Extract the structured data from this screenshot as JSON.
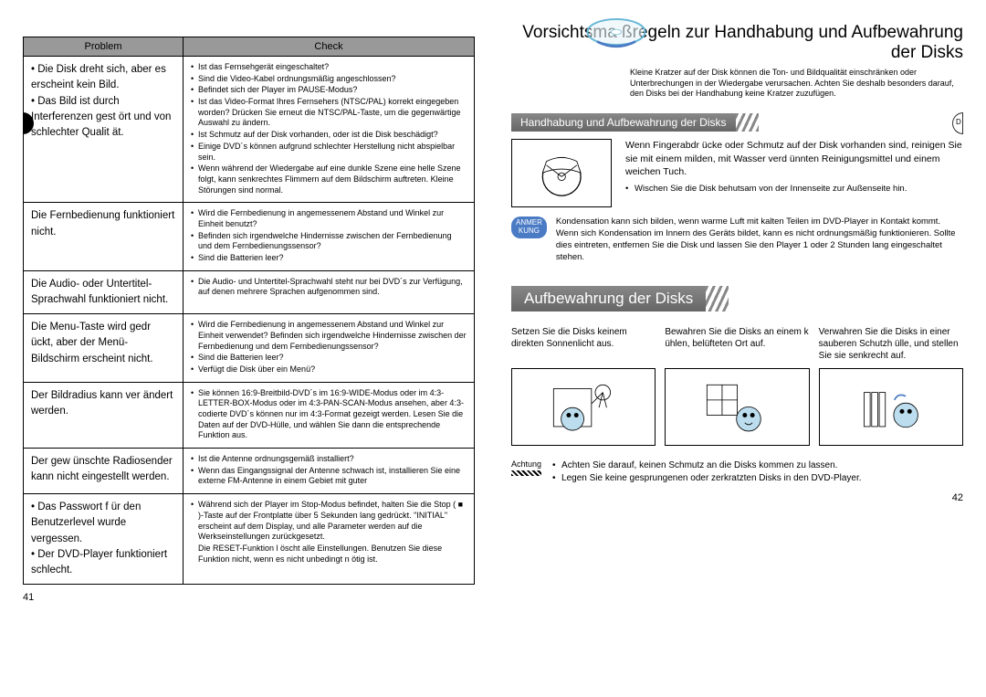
{
  "title": "Vorsichtsma ßregeln zur Handhabung und Aufbewahrung der Disks",
  "intro": "Kleine Kratzer auf der Disk können die Ton- und Bildqualität einschränken oder Unterbrechungen in der Wiedergabe verursachen. Achten Sie deshalb besonders darauf, den Disks bei der Handhabung keine Kratzer zuzufügen.",
  "table": {
    "headers": [
      "Problem",
      "Check"
    ],
    "rows": [
      {
        "problem": "• Die Disk dreht sich, aber es erscheint kein Bild.\n• Das Bild ist durch Interferenzen gest ört und von schlechter Qualit ät.",
        "check": "• Ist das Fernsehgerät eingeschaltet?\n• Sind die Video-Kabel ordnungsmäßig angeschlossen?\n• Befindet sich der Player im PAUSE-Modus?\n• Ist das Video-Format Ihres Fernsehers (NTSC/PAL) korrekt eingegeben worden? Drücken Sie erneut die NTSC/PAL-Taste, um die gegenwärtige Auswahl zu ändern.\n• Ist Schmutz auf der Disk vorhanden, oder ist die Disk beschädigt?\n• Einige DVD´s können aufgrund schlechter Herstellung nicht abspielbar sein.\n• Wenn während der Wiedergabe auf eine dunkle Szene eine helle Szene folgt, kann senkrechtes Flimmern auf dem Bildschirm auftreten. Kleine Störungen sind normal."
      },
      {
        "problem": "Die Fernbedienung funktioniert nicht.",
        "check": "• Wird die Fernbedienung in angemessenem Abstand und Winkel zur Einheit benutzt?\n• Befinden sich irgendwelche Hindernisse zwischen der Fernbedienung und dem Fernbedienungssensor?\n• Sind die Batterien leer?"
      },
      {
        "problem": "Die Audio- oder Untertitel-Sprachwahl funktioniert nicht.",
        "check": "• Die Audio- und Untertitel-Sprachwahl steht nur bei DVD´s zur Verfügung, auf denen mehrere Sprachen aufgenommen sind."
      },
      {
        "problem": "Die Menu-Taste wird gedr ückt, aber der Menü-Bildschirm erscheint nicht.",
        "check": "• Wird die Fernbedienung in angemessenem Abstand und Winkel zur Einheit verwendet? Befinden sich irgendwelche Hindernisse zwischen der Fernbedienung und dem Fernbedienungssensor?\n• Sind die Batterien leer?\n• Verfügt die Disk über ein Menü?"
      },
      {
        "problem": "Der Bildradius kann ver ändert werden.",
        "check": "• Sie können 16:9-Breitbild-DVD´s im 16:9-WIDE-Modus oder im 4:3-LETTER-BOX-Modus oder im 4:3-PAN-SCAN-Modus ansehen, aber 4:3-codierte DVD´s können nur im 4:3-Format gezeigt werden. Lesen Sie die Daten auf der DVD-Hülle, und wählen Sie dann die entsprechende Funktion aus."
      },
      {
        "problem": "Der gew ünschte Radiosender kann nicht eingestellt werden.",
        "check": "• Ist die Antenne ordnungsgemäß installiert?\n• Wenn das Eingangssignal der Antenne schwach ist, installieren Sie eine externe FM-Antenne in einem Gebiet mit guter"
      },
      {
        "problem": "• Das Passwort f ür den Benutzerlevel wurde vergessen.\n• Der DVD-Player funktioniert schlecht.",
        "check": "• Während sich der Player im Stop-Modus befindet, halten Sie die Stop ( ■ )-Taste auf der Frontplatte über 5 Sekunden lang gedrückt. \"INITIAL\" erscheint auf dem Display, und alle Parameter werden auf die Werkseinstellungen zurückgesetzt.\nDie RESET-Funktion l öscht alle Einstellungen. Benutzen Sie diese Funktion nicht, wenn es nicht unbedingt n ötig ist."
      }
    ]
  },
  "pageNumLeft": "41",
  "pageNumRight": "42",
  "handling": {
    "header": "Handhabung und Aufbewahrung der Disks",
    "text": "Wenn Fingerabdr ücke oder Schmutz auf der Disk vorhanden sind, reinigen Sie sie mit einem milden, mit Wasser verd ünnten Reinigungsmittel und einem weichen Tuch.",
    "bullet": "Wischen Sie die Disk behutsam von der Innenseite zur Außenseite hin."
  },
  "note": {
    "badge": "ANMER\nKUNG",
    "text": "Kondensation kann sich bilden, wenn warme Luft mit kalten Teilen im DVD-Player in Kontakt kommt. Wenn sich Kondensation im Innern des Geräts bildet, kann es nicht ordnungsmäßig funktionieren. Sollte dies eintreten, entfernen Sie die Disk und lassen Sie den Player 1 oder 2 Stunden lang eingeschaltet stehen."
  },
  "storage": {
    "header": "Aufbewahrung der Disks",
    "items": [
      "Setzen Sie die Disks keinem direkten Sonnenlicht aus.",
      "Bewahren Sie die Disks an einem k ühlen, belüfteten Ort auf.",
      "Verwahren Sie die Disks in einer sauberen Schutzh ülle, und stellen Sie sie senkrecht auf."
    ]
  },
  "caution": {
    "badge": "Achtung",
    "items": [
      "Achten Sie darauf, keinen Schmutz an die Disks kommen zu lassen.",
      "Legen Sie keine gesprungenen oder zerkratzten Disks in den DVD-Player."
    ]
  }
}
